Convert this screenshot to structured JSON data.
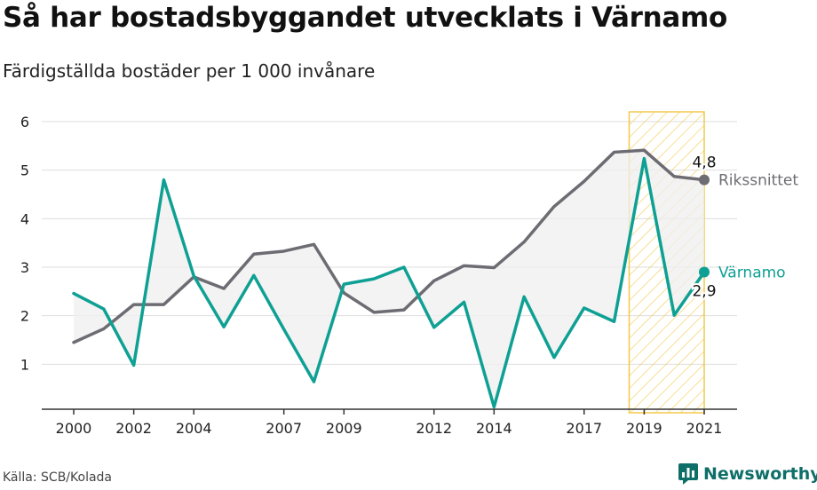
{
  "header": {
    "title": "Så har bostadsbyggandet utvecklats i Värnamo",
    "subtitle": "Färdigställda bostäder per 1 000 invånare"
  },
  "footer": {
    "source": "Källa: SCB/Kolada",
    "brand": "Newsworthy"
  },
  "colors": {
    "riket": "#6e6c73",
    "varnamo": "#0fa094",
    "highlight": "#f2c94c",
    "fill": "#efefef",
    "grid": "#dddddd",
    "brand": "#0e6e68"
  },
  "chart_data": {
    "type": "line",
    "title": "Så har bostadsbyggandet utvecklats i Värnamo",
    "subtitle": "Färdigställda bostäder per 1 000 invånare",
    "x": [
      2000,
      2001,
      2002,
      2003,
      2004,
      2005,
      2006,
      2007,
      2008,
      2009,
      2010,
      2011,
      2012,
      2013,
      2014,
      2015,
      2016,
      2017,
      2018,
      2019,
      2020,
      2021
    ],
    "x_tick_labels": [
      "2000",
      "2002",
      "2004",
      "2007",
      "2009",
      "2012",
      "2014",
      "2017",
      "2019",
      "2021"
    ],
    "ylim": [
      0,
      6
    ],
    "y_ticks": [
      1,
      2,
      3,
      4,
      5,
      6
    ],
    "grid": true,
    "series": [
      {
        "name": "Rikssnittet",
        "values": [
          1.45,
          1.73,
          2.23,
          2.23,
          2.8,
          2.56,
          3.27,
          3.33,
          3.47,
          2.47,
          2.07,
          2.12,
          2.72,
          3.03,
          2.99,
          3.52,
          4.25,
          4.77,
          5.37,
          5.41,
          4.87,
          4.8
        ],
        "end_label": "4,8"
      },
      {
        "name": "Värnamo",
        "values": [
          2.46,
          2.14,
          0.98,
          4.8,
          2.82,
          1.77,
          2.83,
          1.72,
          0.64,
          2.65,
          2.76,
          3.0,
          1.76,
          2.28,
          0.12,
          2.39,
          1.14,
          2.16,
          1.88,
          5.24,
          2.01,
          2.9
        ],
        "end_label": "2,9"
      }
    ],
    "highlight_range": [
      2019,
      2021
    ]
  }
}
